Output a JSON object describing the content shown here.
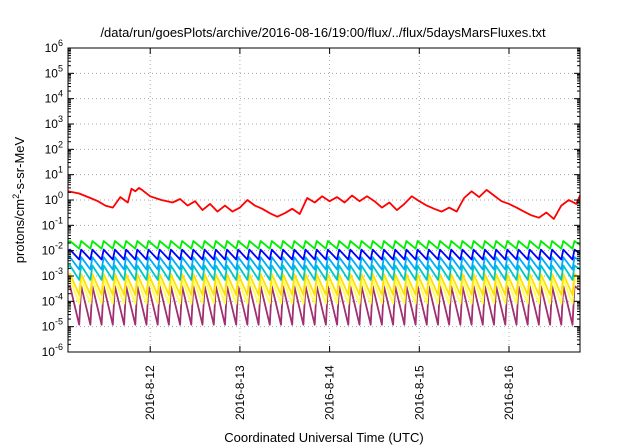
{
  "chart_data": {
    "type": "line",
    "title": "/data/run/goesPlots/archive/2016-08-16/19:00/flux/../flux/5daysMarsFluxes.txt",
    "xlabel": "Coordinated Universal Time (UTC)",
    "ylabel": {
      "pre": "protons/cm",
      "sup": "2",
      "post": "-s-sr-MeV"
    },
    "yscale": "log",
    "ylim": [
      "1e-6",
      "1e6"
    ],
    "yticks": [
      {
        "base": "10",
        "exp": "-6"
      },
      {
        "base": "10",
        "exp": "-5"
      },
      {
        "base": "10",
        "exp": "-4"
      },
      {
        "base": "10",
        "exp": "-3"
      },
      {
        "base": "10",
        "exp": "-2"
      },
      {
        "base": "10",
        "exp": "-1"
      },
      {
        "base": "10",
        "exp": "0"
      },
      {
        "base": "10",
        "exp": "1"
      },
      {
        "base": "10",
        "exp": "2"
      },
      {
        "base": "10",
        "exp": "3"
      },
      {
        "base": "10",
        "exp": "4"
      },
      {
        "base": "10",
        "exp": "5"
      },
      {
        "base": "10",
        "exp": "6"
      }
    ],
    "xlim": [
      "2016-08-11 02:00",
      "2016-08-16 19:00"
    ],
    "xticks": [
      "2016-8-12",
      "2016-8-13",
      "2016-8-14",
      "2016-8-15",
      "2016-8-16"
    ],
    "grid": true,
    "series": [
      {
        "color": "#ff0000",
        "x": [
          "2016-08-11 02:00",
          "2016-08-11 05:00",
          "2016-08-11 08:00",
          "2016-08-11 10:00",
          "2016-08-11 12:00",
          "2016-08-11 14:00",
          "2016-08-11 16:00",
          "2016-08-11 18:00",
          "2016-08-11 19:00",
          "2016-08-11 20:00",
          "2016-08-11 21:00",
          "2016-08-11 22:00",
          "2016-08-12 00:00",
          "2016-08-12 03:00",
          "2016-08-12 06:00",
          "2016-08-12 08:00",
          "2016-08-12 10:00",
          "2016-08-12 12:00",
          "2016-08-12 14:00",
          "2016-08-12 16:00",
          "2016-08-12 18:00",
          "2016-08-12 20:00",
          "2016-08-12 22:00",
          "2016-08-13 00:00",
          "2016-08-13 02:00",
          "2016-08-13 04:00",
          "2016-08-13 06:00",
          "2016-08-13 08:00",
          "2016-08-13 10:00",
          "2016-08-13 12:00",
          "2016-08-13 14:00",
          "2016-08-13 16:00",
          "2016-08-13 18:00",
          "2016-08-13 20:00",
          "2016-08-13 22:00",
          "2016-08-14 00:00",
          "2016-08-14 02:00",
          "2016-08-14 04:00",
          "2016-08-14 06:00",
          "2016-08-14 08:00",
          "2016-08-14 10:00",
          "2016-08-14 12:00",
          "2016-08-14 14:00",
          "2016-08-14 16:00",
          "2016-08-14 18:00",
          "2016-08-14 20:00",
          "2016-08-14 22:00",
          "2016-08-15 00:00",
          "2016-08-15 02:00",
          "2016-08-15 04:00",
          "2016-08-15 06:00",
          "2016-08-15 08:00",
          "2016-08-15 10:00",
          "2016-08-15 12:00",
          "2016-08-15 14:00",
          "2016-08-15 16:00",
          "2016-08-15 18:00",
          "2016-08-15 20:00",
          "2016-08-15 22:00",
          "2016-08-16 00:00",
          "2016-08-16 02:00",
          "2016-08-16 04:00",
          "2016-08-16 06:00",
          "2016-08-16 08:00",
          "2016-08-16 10:00",
          "2016-08-16 12:00",
          "2016-08-16 14:00",
          "2016-08-16 16:00",
          "2016-08-16 18:00",
          "2016-08-16 19:00"
        ],
        "y": [
          2.2,
          1.8,
          1.2,
          0.9,
          0.6,
          0.5,
          1.3,
          0.8,
          2.8,
          2.2,
          3.0,
          2.4,
          1.4,
          1.0,
          0.8,
          1.1,
          0.6,
          0.9,
          0.4,
          0.7,
          0.35,
          0.6,
          0.35,
          0.5,
          1.0,
          0.6,
          0.45,
          0.3,
          0.22,
          0.3,
          0.45,
          0.28,
          1.2,
          0.8,
          1.4,
          0.9,
          1.3,
          0.8,
          1.5,
          0.9,
          1.4,
          0.9,
          0.5,
          0.8,
          0.4,
          0.7,
          1.4,
          0.9,
          0.6,
          0.45,
          0.35,
          0.5,
          0.35,
          1.2,
          2.2,
          1.3,
          2.5,
          1.5,
          0.9,
          0.7,
          0.5,
          0.35,
          0.25,
          0.2,
          0.32,
          0.18,
          0.6,
          1.0,
          0.7,
          1.5
        ]
      },
      {
        "color": "#00ee00",
        "peak": 0.024,
        "trough": 0.012
      },
      {
        "color": "#0000ff",
        "peak": 0.011,
        "trough": 0.0045
      },
      {
        "color": "#00aaff",
        "peak": 0.0055,
        "trough": 0.0018
      },
      {
        "color": "#00c8c8",
        "peak": 0.0026,
        "trough": 0.0007
      },
      {
        "color": "#ffe000",
        "peak": 0.0012,
        "trough": 0.00018
      },
      {
        "color": "#ffff55",
        "peak": 0.00075,
        "trough": 8e-05
      },
      {
        "color": "#a03070",
        "peak": 0.0004,
        "trough": 1.2e-05
      }
    ]
  }
}
